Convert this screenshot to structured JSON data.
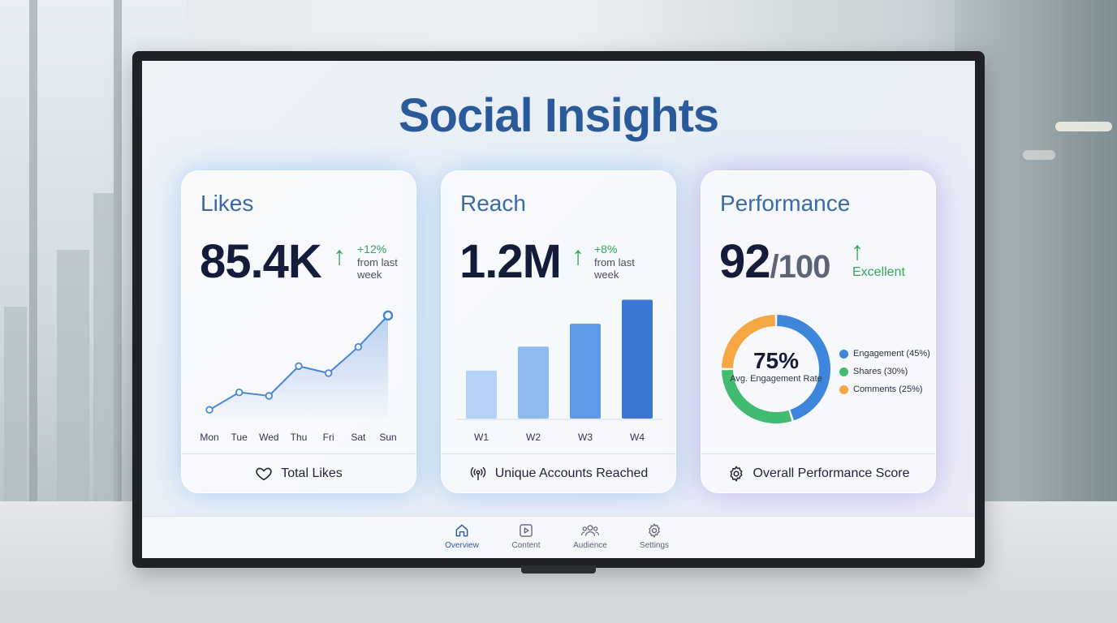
{
  "app": {
    "title": "Social Insights"
  },
  "cards": {
    "likes": {
      "title": "Likes",
      "value": "85.4K",
      "delta": "+12%",
      "delta_note": "from last week",
      "footer": "Total Likes",
      "footer_icon": "heart-icon"
    },
    "reach": {
      "title": "Reach",
      "value": "1.2M",
      "delta": "+8%",
      "delta_note": "from last week",
      "footer": "Unique Accounts Reached",
      "footer_icon": "broadcast-icon"
    },
    "performance": {
      "title": "Performance",
      "score": "92",
      "score_suffix": "/100",
      "rating": "Excellent",
      "donut_value": "75%",
      "donut_caption": "Avg. Engagement Rate",
      "footer": "Overall Performance Score",
      "footer_icon": "gear-icon"
    }
  },
  "chart_data": [
    {
      "type": "area",
      "categories": [
        "Mon",
        "Tue",
        "Wed",
        "Thu",
        "Fri",
        "Sat",
        "Sun"
      ],
      "series": [
        {
          "values": [
            1,
            3,
            2.6,
            6,
            5.2,
            8.2,
            11.8
          ]
        }
      ],
      "ylim": [
        0,
        13
      ],
      "grid": false,
      "color": "#4a86d6"
    },
    {
      "type": "bar",
      "categories": [
        "W1",
        "W2",
        "W3",
        "W4"
      ],
      "values": [
        40,
        60,
        79,
        99
      ],
      "ylim": [
        0,
        100
      ],
      "grid": false,
      "colors": [
        "#b4d2f7",
        "#8fbaef",
        "#5e9be6",
        "#3a77d6"
      ]
    },
    {
      "type": "pie",
      "categories": [
        "Engagement (45%)",
        "Shares (30%)",
        "Comments (25%)"
      ],
      "values": [
        45,
        30,
        25
      ],
      "colors": [
        "#3e86dc",
        "#40bb70",
        "#f4a743"
      ],
      "legend": "right"
    }
  ],
  "nav": {
    "items": [
      {
        "label": "Overview",
        "icon": "home-icon",
        "active": true
      },
      {
        "label": "Content",
        "icon": "play-icon",
        "active": false
      },
      {
        "label": "Audience",
        "icon": "users-icon",
        "active": false
      },
      {
        "label": "Settings",
        "icon": "gear-icon",
        "active": false
      }
    ]
  }
}
